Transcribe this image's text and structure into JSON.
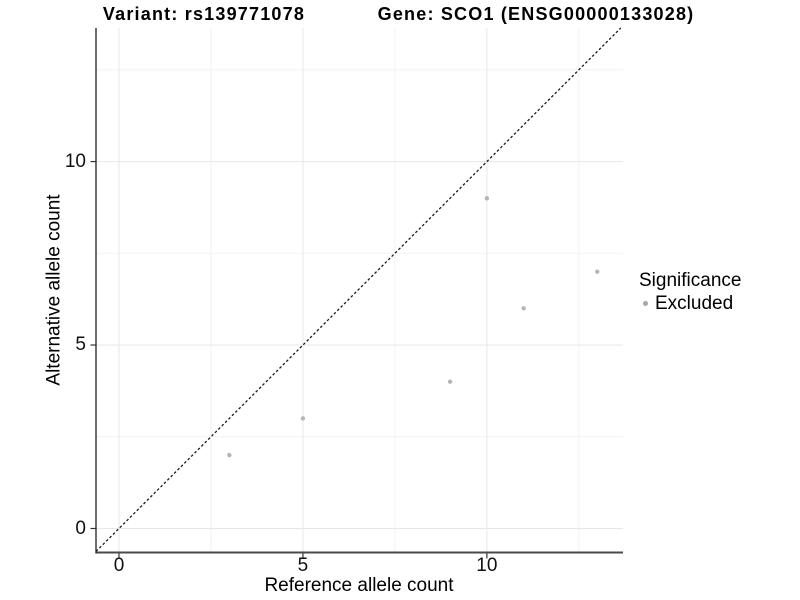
{
  "header": {
    "variant_title": "Variant: rs139771078",
    "gene_title": "Gene: SCO1 (ENSG00000133028)"
  },
  "legend": {
    "title": "Significance",
    "items": [
      {
        "label": "Excluded",
        "marker_color": "#a8a8a8"
      }
    ]
  },
  "chart_data": {
    "type": "scatter",
    "title": "Variant: rs139771078 | Gene: SCO1 (ENSG00000133028)",
    "xlabel": "Reference allele count",
    "ylabel": "Alternative allele count",
    "xlim": [
      -0.625,
      13.7
    ],
    "ylim": [
      -0.654,
      13.64
    ],
    "x_major_ticks": [
      0,
      5,
      10
    ],
    "y_major_ticks": [
      0,
      5,
      10
    ],
    "x_minor_gridlines": [
      2.5,
      7.5,
      12.5
    ],
    "y_minor_gridlines": [
      2.5,
      7.5,
      12.5
    ],
    "grid": "major+minor",
    "legend_position": "right",
    "series": [
      {
        "name": "Excluded",
        "color": "#b6b6b6",
        "points": [
          [
            3,
            2
          ],
          [
            5,
            3
          ],
          [
            9,
            4
          ],
          [
            10,
            9
          ],
          [
            11,
            6
          ],
          [
            13,
            7
          ]
        ]
      }
    ],
    "reference_line": {
      "label": "identity y = x",
      "slope": 1,
      "intercept": 0,
      "style": "dashed",
      "color": "#1a1a1a"
    }
  },
  "colors": {
    "background": "#ffffff",
    "grid_major": "#e7e7e7",
    "grid_minor": "#f2f2f2",
    "axis_line_x": "#4a4a4a",
    "axis_line_y": "#1f1f1f",
    "tick_mark": "#333333",
    "point": "#b6b6b6"
  }
}
